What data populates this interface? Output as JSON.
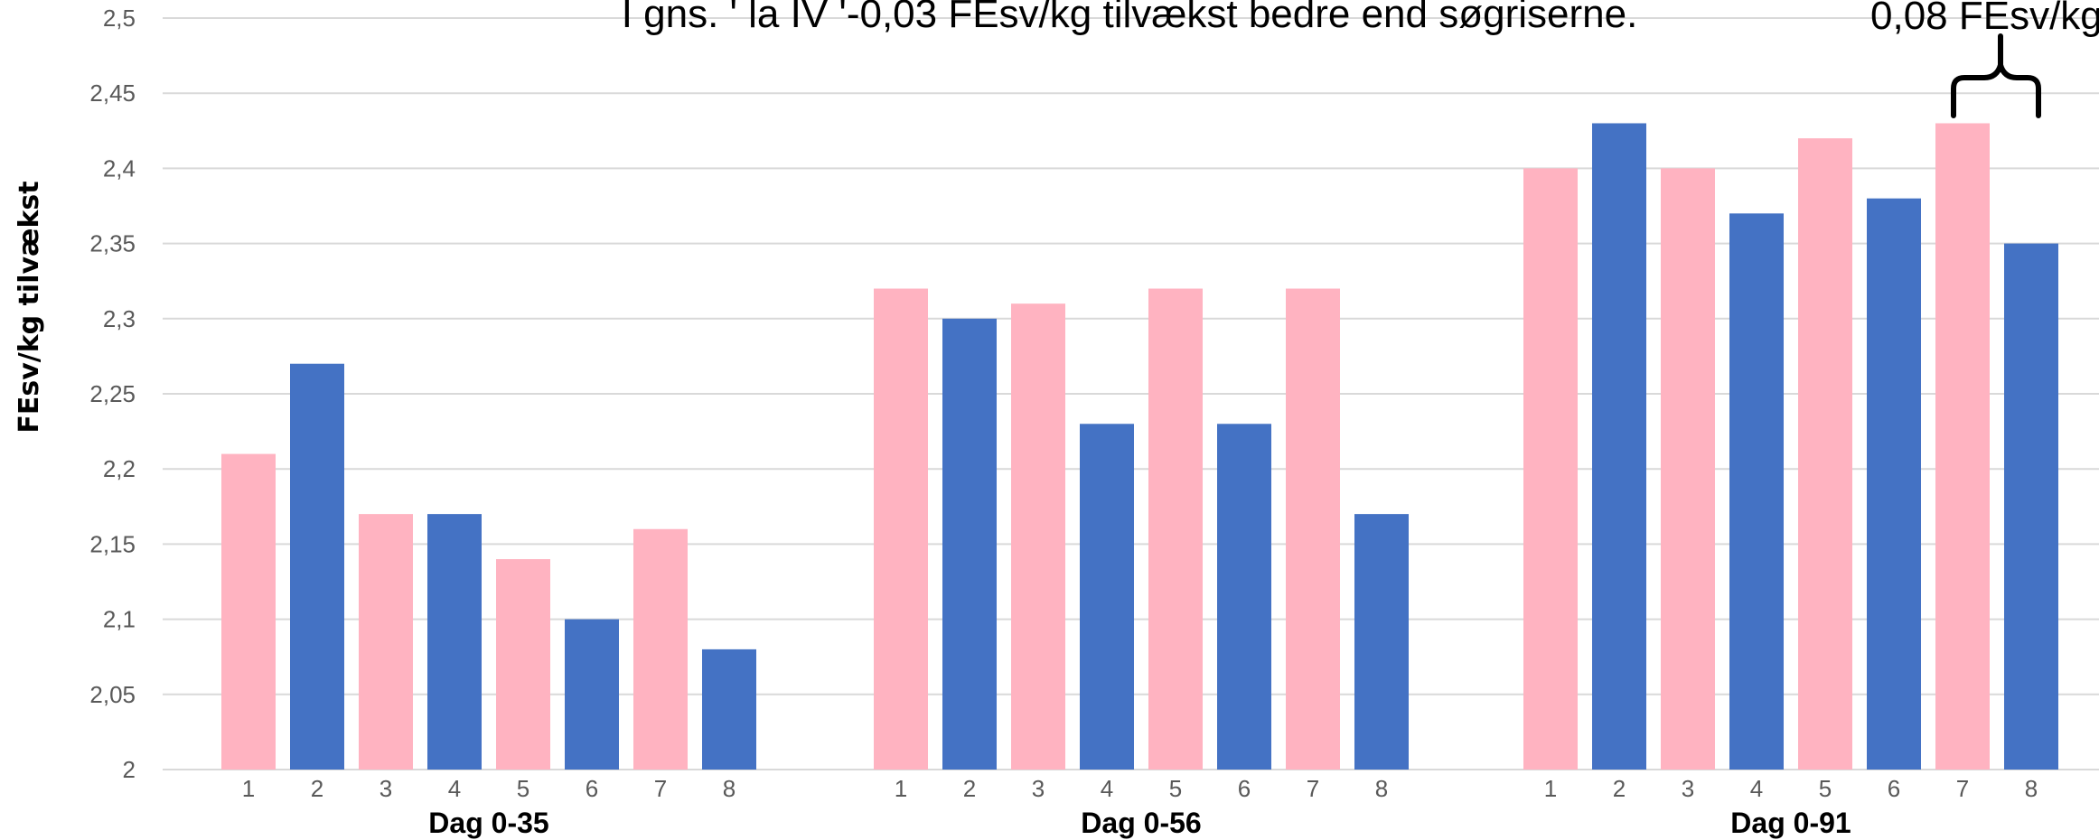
{
  "chart_data": {
    "type": "bar",
    "ylabel": "FEsv/kg tilvækst",
    "ylim": [
      2,
      2.5
    ],
    "yticks": [
      "2",
      "2,05",
      "2,1",
      "2,15",
      "2,2",
      "2,25",
      "2,3",
      "2,35",
      "2,4",
      "2,45",
      "2,5"
    ],
    "grid": true,
    "colors": {
      "pink": "#ffb3c1",
      "blue": "#4472c4"
    },
    "groups": [
      {
        "label": "Dag 0-35",
        "categories": [
          "1",
          "2",
          "3",
          "4",
          "5",
          "6",
          "7",
          "8"
        ],
        "values": [
          2.21,
          2.27,
          2.17,
          2.17,
          2.14,
          2.1,
          2.16,
          2.08
        ]
      },
      {
        "label": "Dag 0-56",
        "categories": [
          "1",
          "2",
          "3",
          "4",
          "5",
          "6",
          "7",
          "8"
        ],
        "values": [
          2.32,
          2.3,
          2.31,
          2.23,
          2.32,
          2.23,
          2.32,
          2.17
        ]
      },
      {
        "label": "Dag 0-91",
        "categories": [
          "1",
          "2",
          "3",
          "4",
          "5",
          "6",
          "7",
          "8"
        ],
        "values": [
          2.4,
          2.43,
          2.4,
          2.37,
          2.42,
          2.38,
          2.43,
          2.35
        ]
      }
    ],
    "bar_colors": [
      "pink",
      "blue",
      "pink",
      "blue",
      "pink",
      "blue",
      "pink",
      "blue"
    ],
    "annotations": {
      "top_text": "I gns. ' la IV '-0,03 FEsv/kg tilvækst bedre end søgriserne.",
      "bracket_text": "0,08 FEsv/kg",
      "bracket_group": 2,
      "bracket_bars": [
        6,
        7
      ]
    }
  }
}
